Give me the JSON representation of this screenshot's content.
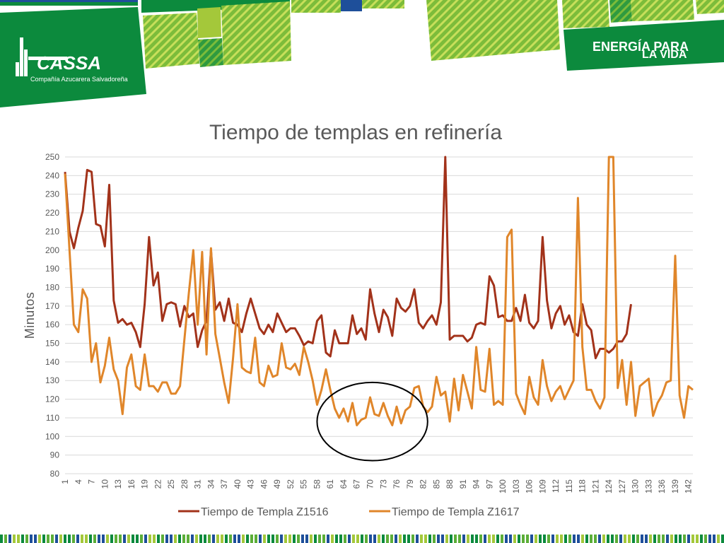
{
  "header": {
    "logo_name": "CASSA",
    "logo_subtitle": "Compañía Azucarera Salvadoreña",
    "slogan_line1": "ENERGÍA PARA",
    "slogan_line2": "LA VIDA",
    "colors": {
      "dark_green": "#0c8a3d",
      "mid_green": "#1e9a46",
      "lime": "#a4c83a",
      "blue": "#1e4f9a",
      "stripe": "#5cae38"
    }
  },
  "chart_data": {
    "type": "line",
    "title": "Tiempo de templas en refinería",
    "xlabel": "",
    "ylabel": "Minutos",
    "ylim": [
      80,
      250
    ],
    "yticks": [
      80,
      90,
      100,
      110,
      120,
      130,
      140,
      150,
      160,
      170,
      180,
      190,
      200,
      210,
      220,
      230,
      240,
      250
    ],
    "xlim": [
      1,
      143
    ],
    "xticks": [
      1,
      4,
      7,
      10,
      13,
      16,
      19,
      22,
      25,
      28,
      31,
      34,
      37,
      40,
      43,
      46,
      49,
      52,
      55,
      58,
      61,
      64,
      67,
      70,
      73,
      76,
      79,
      82,
      85,
      88,
      91,
      94,
      97,
      100,
      103,
      106,
      109,
      112,
      115,
      118,
      121,
      124,
      127,
      130,
      133,
      136,
      139,
      142
    ],
    "grid": true,
    "legend_position": "bottom",
    "series": [
      {
        "name": "Tiempo de Templa Z1516",
        "color": "#a2321a",
        "values": [
          242,
          210,
          201,
          212,
          221,
          243,
          242,
          214,
          213,
          202,
          235,
          173,
          161,
          163,
          160,
          161,
          156,
          148,
          171,
          207,
          181,
          188,
          162,
          171,
          172,
          171,
          159,
          170,
          164,
          166,
          148,
          157,
          162,
          200,
          168,
          172,
          162,
          174,
          161,
          160,
          156,
          166,
          174,
          166,
          158,
          155,
          160,
          156,
          166,
          161,
          156,
          158,
          158,
          154,
          149,
          151,
          150,
          162,
          165,
          145,
          143,
          157,
          150,
          150,
          150,
          165,
          155,
          158,
          152,
          179,
          166,
          156,
          168,
          164,
          154,
          174,
          169,
          167,
          170,
          179,
          161,
          158,
          162,
          165,
          160,
          172,
          250,
          152,
          154,
          154,
          154,
          151,
          153,
          160,
          161,
          160,
          186,
          181,
          164,
          165,
          162,
          162,
          169,
          162,
          176,
          161,
          158,
          162,
          207,
          173,
          158,
          166,
          170,
          160,
          165,
          156,
          154,
          171,
          160,
          157,
          142,
          147,
          147,
          145,
          147,
          151,
          151,
          155,
          171
        ]
      },
      {
        "name": "Tiempo de Templa Z1617",
        "color": "#e0862a",
        "values": [
          241,
          200,
          160,
          156,
          179,
          174,
          140,
          150,
          129,
          138,
          153,
          136,
          130,
          112,
          137,
          144,
          127,
          125,
          144,
          127,
          127,
          124,
          129,
          129,
          123,
          123,
          127,
          152,
          177,
          200,
          160,
          199,
          144,
          201,
          155,
          142,
          129,
          118,
          142,
          171,
          137,
          135,
          134,
          153,
          129,
          127,
          138,
          132,
          133,
          150,
          137,
          136,
          139,
          133,
          148,
          140,
          130,
          117,
          125,
          136,
          125,
          115,
          110,
          115,
          108,
          118,
          106,
          109,
          110,
          121,
          112,
          111,
          118,
          111,
          106,
          116,
          107,
          114,
          116,
          126,
          127,
          116,
          113,
          116,
          132,
          122,
          124,
          108,
          131,
          114,
          133,
          124,
          115,
          148,
          125,
          124,
          147,
          117,
          119,
          117,
          207,
          211,
          123,
          117,
          112,
          132,
          121,
          117,
          141,
          127,
          119,
          124,
          127,
          120,
          125,
          130,
          228,
          148,
          125,
          125,
          119,
          115,
          121,
          250,
          250,
          126,
          141,
          117,
          140,
          111,
          127,
          129,
          131,
          111,
          118,
          122,
          129,
          130,
          197,
          122,
          110,
          127,
          125
        ]
      }
    ],
    "annotations": [
      {
        "type": "ellipse",
        "cx": 70.5,
        "cy": 108,
        "rx": 12.5,
        "ry": 21,
        "stroke": "#000000"
      }
    ]
  }
}
